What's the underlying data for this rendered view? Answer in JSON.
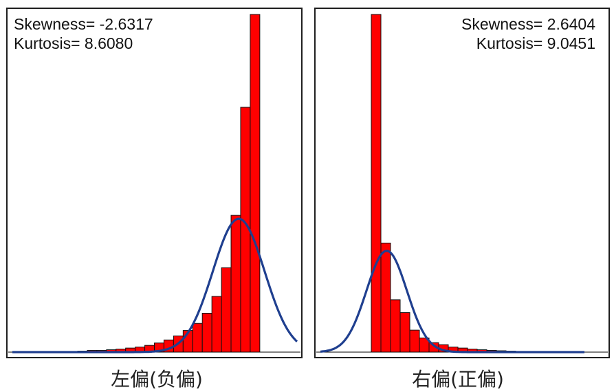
{
  "chart_data": [
    {
      "type": "bar",
      "caption": "左偏(负偏)",
      "annotations": [
        "Skewness= -2.6317",
        "Kurtosis= 8.6080"
      ],
      "annotation_position": "top-left",
      "ylim": [
        0,
        100
      ],
      "values": [
        0.3,
        0.5,
        0.5,
        0.7,
        0.9,
        1.2,
        1.5,
        2.0,
        2.7,
        3.6,
        4.8,
        6.4,
        8.5,
        11.5,
        16.5,
        25.0,
        40.5,
        72.5,
        100
      ],
      "curve": {
        "name": "normal fit",
        "peak": 39.5,
        "peak_bin": 16.8,
        "width_bins": 2.7
      }
    },
    {
      "type": "bar",
      "caption": "右偏(正偏)",
      "annotations": [
        "Skewness= 2.6404",
        "Kurtosis= 9.0451"
      ],
      "annotation_position": "top-right",
      "ylim": [
        0,
        100
      ],
      "values": [
        100,
        32.3,
        15.5,
        11.7,
        6.5,
        4.2,
        2.8,
        2.2,
        1.5,
        1.2,
        0.9,
        0.7,
        0.5,
        0.4,
        0.3,
        0.2,
        0.2,
        0.1
      ],
      "curve": {
        "name": "normal fit",
        "peak": 30.0,
        "peak_bin": 1.6,
        "width_bins": 2.1
      }
    }
  ]
}
